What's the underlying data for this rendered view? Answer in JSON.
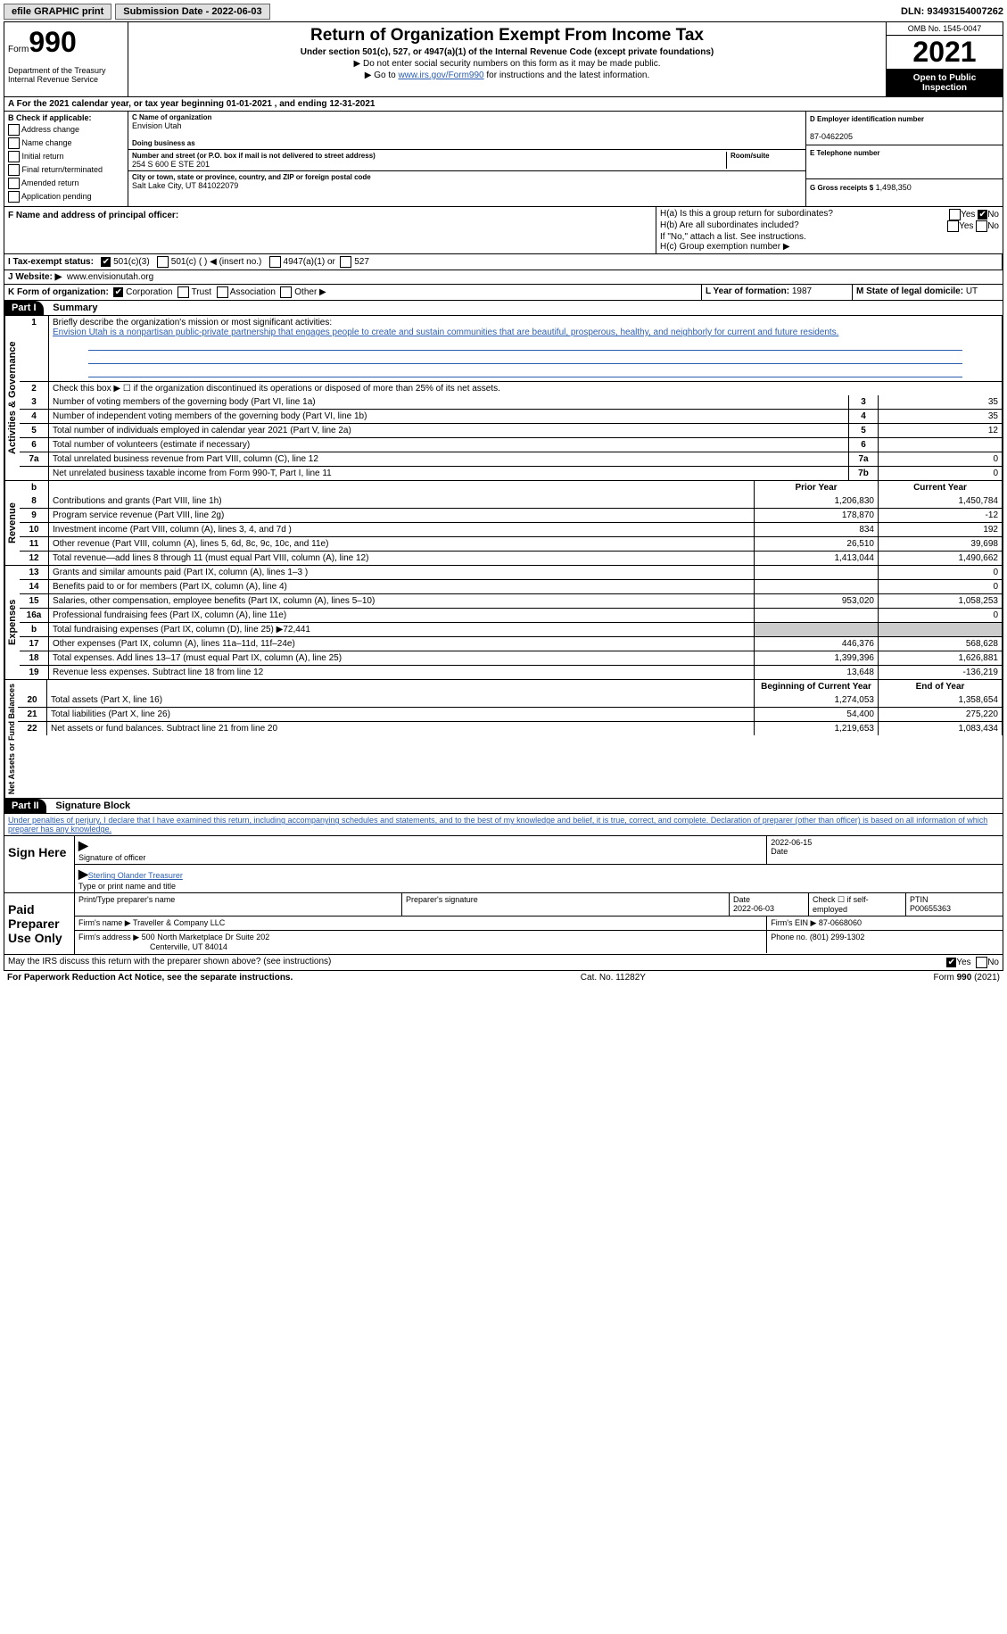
{
  "topbar": {
    "efile": "efile GRAPHIC print",
    "submission": "Submission Date - 2022-06-03",
    "dln": "DLN: 93493154007262"
  },
  "header": {
    "form_word": "Form",
    "form_num": "990",
    "dept": "Department of the Treasury Internal Revenue Service",
    "title": "Return of Organization Exempt From Income Tax",
    "subtitle": "Under section 501(c), 527, or 4947(a)(1) of the Internal Revenue Code (except private foundations)",
    "instr1": "▶ Do not enter social security numbers on this form as it may be made public.",
    "instr2_pre": "▶ Go to ",
    "instr2_link": "www.irs.gov/Form990",
    "instr2_post": " for instructions and the latest information.",
    "omb": "OMB No. 1545-0047",
    "year": "2021",
    "inspect": "Open to Public Inspection"
  },
  "lineA": "A For the 2021 calendar year, or tax year beginning 01-01-2021   , and ending 12-31-2021",
  "colB": {
    "title": "B Check if applicable:",
    "opts": [
      "Address change",
      "Name change",
      "Initial return",
      "Final return/terminated",
      "Amended return",
      "Application pending"
    ]
  },
  "colC": {
    "name_lbl": "C Name of organization",
    "name": "Envision Utah",
    "dba_lbl": "Doing business as",
    "addr_lbl": "Number and street (or P.O. box if mail is not delivered to street address)",
    "addr": "254 S 600 E STE 201",
    "room_lbl": "Room/suite",
    "city_lbl": "City or town, state or province, country, and ZIP or foreign postal code",
    "city": "Salt Lake City, UT  841022079"
  },
  "colD": {
    "ein_lbl": "D Employer identification number",
    "ein": "87-0462205",
    "tel_lbl": "E Telephone number",
    "gross_lbl": "G Gross receipts $",
    "gross": "1,498,350"
  },
  "rowF": {
    "label": "F Name and address of principal officer:",
    "ha": "H(a)  Is this a group return for subordinates?",
    "hb": "H(b)  Are all subordinates included?",
    "hb_note": "If \"No,\" attach a list. See instructions.",
    "hc": "H(c)  Group exemption number ▶"
  },
  "rowI": {
    "label": "I   Tax-exempt status:",
    "o1": "501(c)(3)",
    "o2": "501(c) (  ) ◀ (insert no.)",
    "o3": "4947(a)(1) or",
    "o4": "527"
  },
  "rowJ": {
    "label": "J   Website: ▶",
    "val": "www.envisionutah.org"
  },
  "rowK": {
    "label": "K Form of organization:",
    "o1": "Corporation",
    "o2": "Trust",
    "o3": "Association",
    "o4": "Other ▶",
    "l_lbl": "L Year of formation:",
    "l_val": "1987",
    "m_lbl": "M State of legal domicile:",
    "m_val": "UT"
  },
  "part1": {
    "hdr": "Part I",
    "title": "Summary"
  },
  "summary": {
    "q1": "Briefly describe the organization's mission or most significant activities:",
    "mission": "Envision Utah is a nonpartisan public-private partnership that engages people to create and sustain communities that are beautiful, prosperous, healthy, and neighborly for current and future residents.",
    "q2": "Check this box ▶ ☐  if the organization discontinued its operations or disposed of more than 25% of its net assets.",
    "rows_gov": [
      {
        "n": "3",
        "d": "Number of voting members of the governing body (Part VI, line 1a)",
        "b": "3",
        "v": "35"
      },
      {
        "n": "4",
        "d": "Number of independent voting members of the governing body (Part VI, line 1b)",
        "b": "4",
        "v": "35"
      },
      {
        "n": "5",
        "d": "Total number of individuals employed in calendar year 2021 (Part V, line 2a)",
        "b": "5",
        "v": "12"
      },
      {
        "n": "6",
        "d": "Total number of volunteers (estimate if necessary)",
        "b": "6",
        "v": ""
      },
      {
        "n": "7a",
        "d": "Total unrelated business revenue from Part VIII, column (C), line 12",
        "b": "7a",
        "v": "0"
      },
      {
        "n": "",
        "d": "Net unrelated business taxable income from Form 990-T, Part I, line 11",
        "b": "7b",
        "v": "0"
      }
    ],
    "col_hdrs": {
      "b": "b",
      "py": "Prior Year",
      "cy": "Current Year"
    },
    "rows_rev": [
      {
        "n": "8",
        "d": "Contributions and grants (Part VIII, line 1h)",
        "py": "1,206,830",
        "cy": "1,450,784"
      },
      {
        "n": "9",
        "d": "Program service revenue (Part VIII, line 2g)",
        "py": "178,870",
        "cy": "-12"
      },
      {
        "n": "10",
        "d": "Investment income (Part VIII, column (A), lines 3, 4, and 7d )",
        "py": "834",
        "cy": "192"
      },
      {
        "n": "11",
        "d": "Other revenue (Part VIII, column (A), lines 5, 6d, 8c, 9c, 10c, and 11e)",
        "py": "26,510",
        "cy": "39,698"
      },
      {
        "n": "12",
        "d": "Total revenue—add lines 8 through 11 (must equal Part VIII, column (A), line 12)",
        "py": "1,413,044",
        "cy": "1,490,662"
      }
    ],
    "rows_exp": [
      {
        "n": "13",
        "d": "Grants and similar amounts paid (Part IX, column (A), lines 1–3 )",
        "py": "",
        "cy": "0"
      },
      {
        "n": "14",
        "d": "Benefits paid to or for members (Part IX, column (A), line 4)",
        "py": "",
        "cy": "0"
      },
      {
        "n": "15",
        "d": "Salaries, other compensation, employee benefits (Part IX, column (A), lines 5–10)",
        "py": "953,020",
        "cy": "1,058,253"
      },
      {
        "n": "16a",
        "d": "Professional fundraising fees (Part IX, column (A), line 11e)",
        "py": "",
        "cy": "0"
      },
      {
        "n": "b",
        "d": "Total fundraising expenses (Part IX, column (D), line 25) ▶72,441",
        "py": "grey",
        "cy": "grey"
      },
      {
        "n": "17",
        "d": "Other expenses (Part IX, column (A), lines 11a–11d, 11f–24e)",
        "py": "446,376",
        "cy": "568,628"
      },
      {
        "n": "18",
        "d": "Total expenses. Add lines 13–17 (must equal Part IX, column (A), line 25)",
        "py": "1,399,396",
        "cy": "1,626,881"
      },
      {
        "n": "19",
        "d": "Revenue less expenses. Subtract line 18 from line 12",
        "py": "13,648",
        "cy": "-136,219"
      }
    ],
    "col_hdrs2": {
      "py": "Beginning of Current Year",
      "cy": "End of Year"
    },
    "rows_net": [
      {
        "n": "20",
        "d": "Total assets (Part X, line 16)",
        "py": "1,274,053",
        "cy": "1,358,654"
      },
      {
        "n": "21",
        "d": "Total liabilities (Part X, line 26)",
        "py": "54,400",
        "cy": "275,220"
      },
      {
        "n": "22",
        "d": "Net assets or fund balances. Subtract line 21 from line 20",
        "py": "1,219,653",
        "cy": "1,083,434"
      }
    ],
    "vlabels": {
      "gov": "Activities & Governance",
      "rev": "Revenue",
      "exp": "Expenses",
      "net": "Net Assets or Fund Balances"
    }
  },
  "part2": {
    "hdr": "Part II",
    "title": "Signature Block"
  },
  "sig": {
    "decl": "Under penalties of perjury, I declare that I have examined this return, including accompanying schedules and statements, and to the best of my knowledge and belief, it is true, correct, and complete. Declaration of preparer (other than officer) is based on all information of which preparer has any knowledge.",
    "sign_here": "Sign Here",
    "sig_officer": "Signature of officer",
    "sig_date": "2022-06-15",
    "date_lbl": "Date",
    "name": "Sterling Olander  Treasurer",
    "name_lbl": "Type or print name and title",
    "paid": "Paid Preparer Use Only",
    "prep_name_lbl": "Print/Type preparer's name",
    "prep_sig_lbl": "Preparer's signature",
    "prep_date_lbl": "Date",
    "prep_date": "2022-06-03",
    "check_lbl": "Check ☐ if self-employed",
    "ptin_lbl": "PTIN",
    "ptin": "P00655363",
    "firm_name_lbl": "Firm's name   ▶",
    "firm_name": "Traveller & Company LLC",
    "firm_ein_lbl": "Firm's EIN ▶",
    "firm_ein": "87-0668060",
    "firm_addr_lbl": "Firm's address ▶",
    "firm_addr1": "500 North Marketplace Dr Suite 202",
    "firm_addr2": "Centerville, UT  84014",
    "phone_lbl": "Phone no.",
    "phone": "(801) 299-1302",
    "discuss": "May the IRS discuss this return with the preparer shown above? (see instructions)"
  },
  "footer": {
    "left": "For Paperwork Reduction Act Notice, see the separate instructions.",
    "mid": "Cat. No. 11282Y",
    "right": "Form 990 (2021)"
  }
}
